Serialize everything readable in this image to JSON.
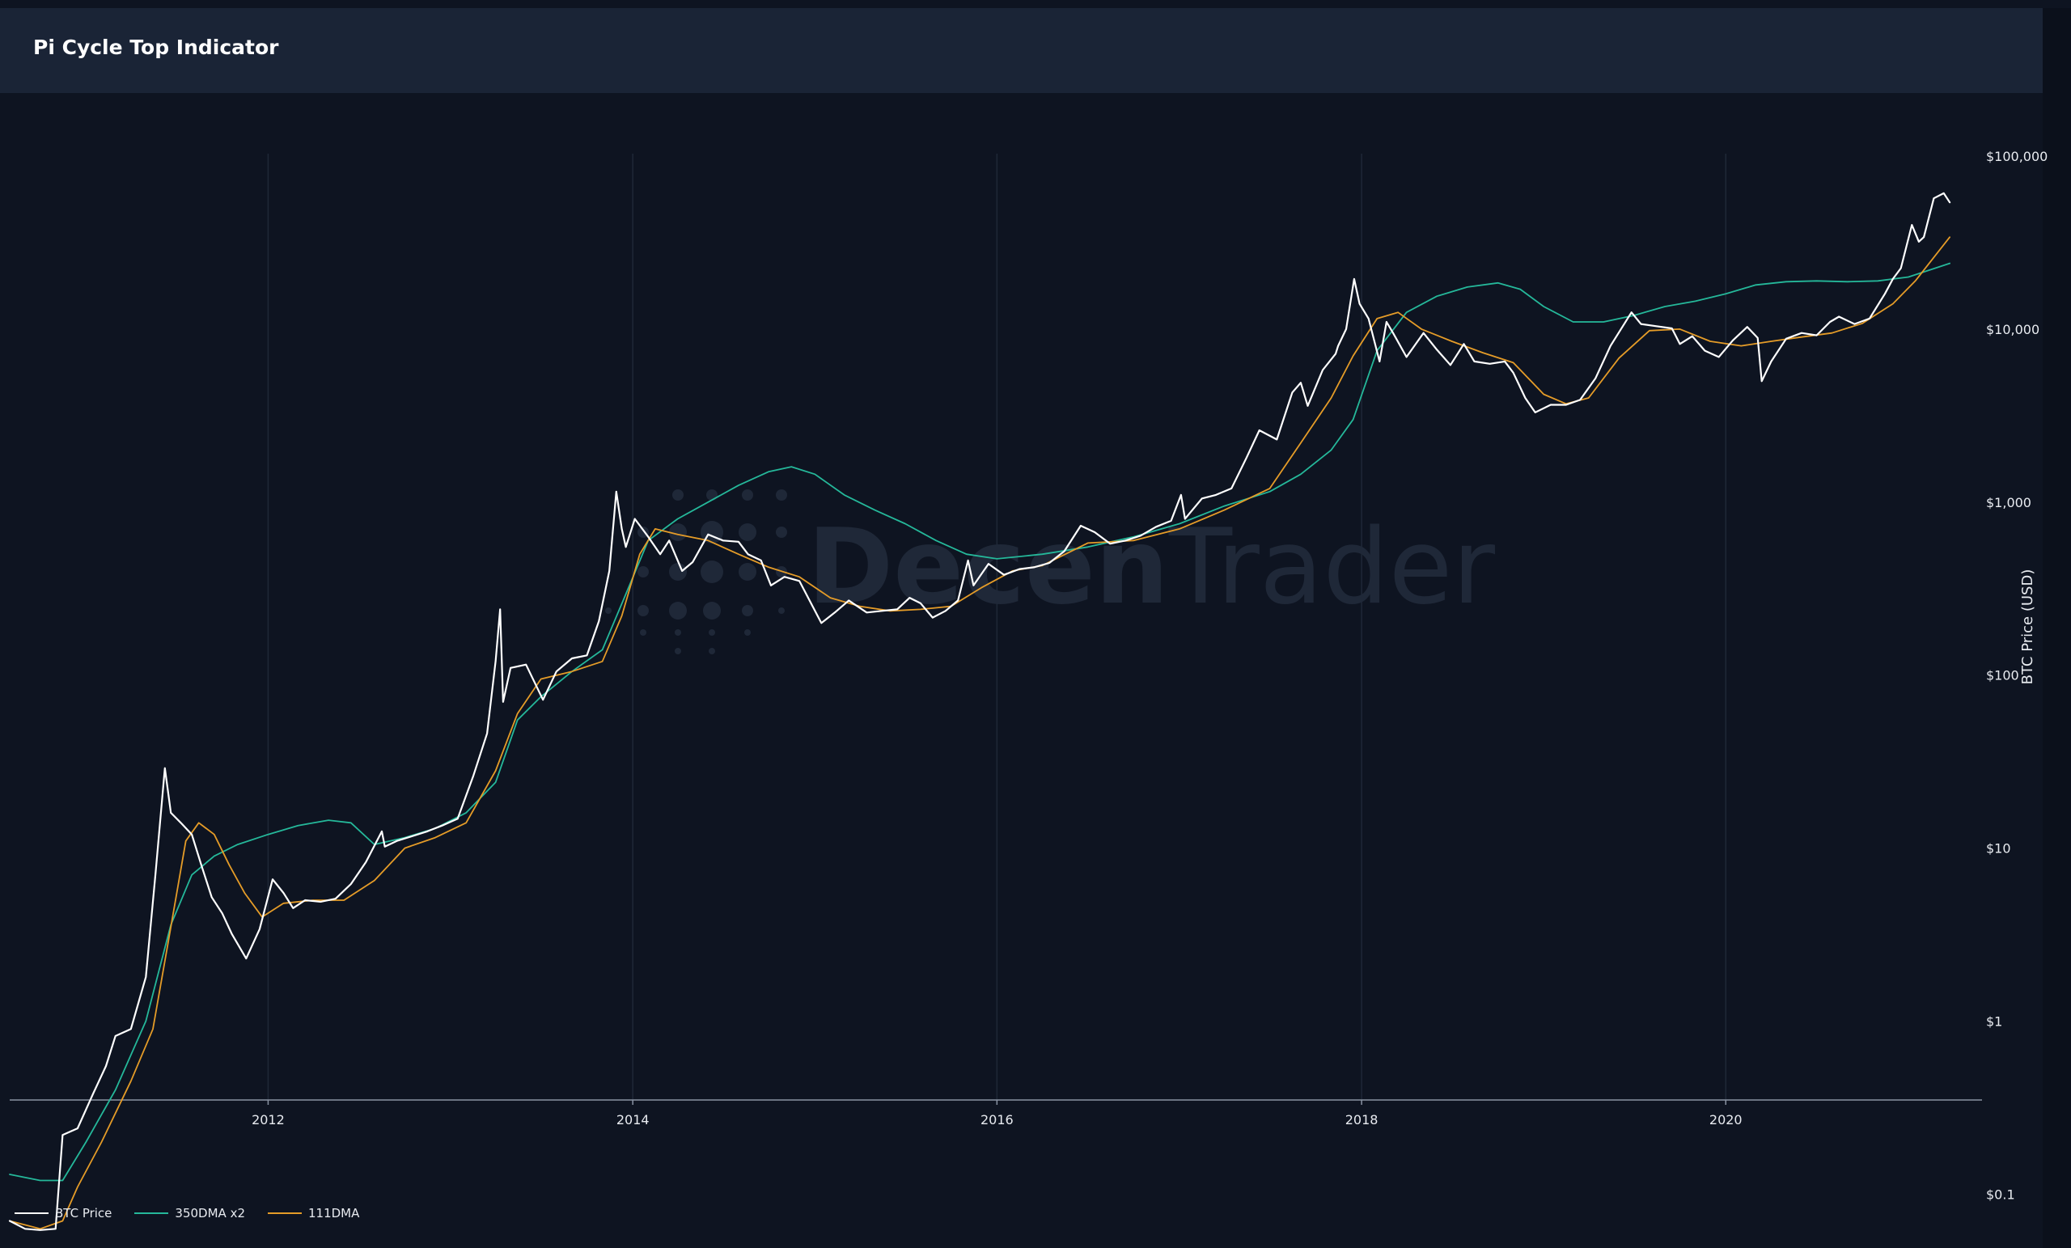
{
  "header": {
    "title": "Pi Cycle Top Indicator"
  },
  "colors": {
    "background": "#0e1421",
    "header_background": "#1a2436",
    "btc_price": "#ffffff",
    "dma350x2": "#25b89a",
    "dma111": "#e59c28",
    "grid": "#1f2837",
    "watermark": "#1f2838",
    "marker": "#cc2255"
  },
  "watermark": {
    "bold_text": "Decen",
    "light_text": "Trader"
  },
  "chart_data": {
    "type": "line",
    "title": "Pi Cycle Top Indicator",
    "xlabel": "",
    "ylabel": "BTC Price (USD)",
    "y_scale": "log",
    "ylim": [
      0.03,
      100000
    ],
    "xlim": [
      "2010-08-01",
      "2021-04-10"
    ],
    "x_ticks": [
      "2012",
      "2014",
      "2016",
      "2018",
      "2020"
    ],
    "x_tick_dates": [
      "2012-01-01",
      "2014-01-01",
      "2016-01-01",
      "2018-01-01",
      "2020-01-01"
    ],
    "y_ticks": [
      0.1,
      1,
      10,
      100,
      1000,
      10000,
      100000
    ],
    "y_tick_labels": [
      "$0.1",
      "$1",
      "$10",
      "$100",
      "$1,000",
      "$10,000",
      "$100,000"
    ],
    "grid": "vertical",
    "legend_position": "bottom-left",
    "series": [
      {
        "name": "BTC Price",
        "color": "#ffffff",
        "x": [
          "2010-08-01",
          "2010-09-01",
          "2010-10-01",
          "2010-11-01",
          "2010-11-15",
          "2010-12-15",
          "2011-01-15",
          "2011-02-10",
          "2011-03-01",
          "2011-04-01",
          "2011-05-01",
          "2011-05-20",
          "2011-06-08",
          "2011-06-20",
          "2011-07-10",
          "2011-08-01",
          "2011-08-20",
          "2011-09-10",
          "2011-10-01",
          "2011-10-20",
          "2011-11-18",
          "2011-12-15",
          "2012-01-10",
          "2012-02-01",
          "2012-02-20",
          "2012-03-15",
          "2012-04-15",
          "2012-05-15",
          "2012-06-15",
          "2012-07-15",
          "2012-08-16",
          "2012-08-22",
          "2012-09-15",
          "2012-10-15",
          "2012-11-15",
          "2012-12-15",
          "2013-01-15",
          "2013-02-15",
          "2013-03-15",
          "2013-04-01",
          "2013-04-10",
          "2013-04-16",
          "2013-05-01",
          "2013-06-01",
          "2013-07-05",
          "2013-08-01",
          "2013-09-01",
          "2013-10-01",
          "2013-10-25",
          "2013-11-15",
          "2013-11-29",
          "2013-12-10",
          "2013-12-18",
          "2014-01-05",
          "2014-02-01",
          "2014-02-25",
          "2014-03-15",
          "2014-04-10",
          "2014-05-01",
          "2014-06-01",
          "2014-07-01",
          "2014-08-01",
          "2014-08-20",
          "2014-09-15",
          "2014-10-05",
          "2014-11-01",
          "2014-12-01",
          "2015-01-14",
          "2015-02-10",
          "2015-03-10",
          "2015-04-15",
          "2015-05-15",
          "2015-06-15",
          "2015-07-10",
          "2015-08-01",
          "2015-08-25",
          "2015-09-20",
          "2015-10-15",
          "2015-11-04",
          "2015-11-15",
          "2015-12-15",
          "2016-01-15",
          "2016-02-15",
          "2016-03-15",
          "2016-04-15",
          "2016-05-15",
          "2016-06-17",
          "2016-07-15",
          "2016-08-15",
          "2016-09-15",
          "2016-10-15",
          "2016-11-15",
          "2016-12-15",
          "2017-01-04",
          "2017-01-12",
          "2017-02-15",
          "2017-03-15",
          "2017-04-15",
          "2017-05-15",
          "2017-06-10",
          "2017-07-15",
          "2017-08-15",
          "2017-09-01",
          "2017-09-15",
          "2017-10-15",
          "2017-11-10",
          "2017-11-15",
          "2017-12-01",
          "2017-12-17",
          "2017-12-28",
          "2018-01-15",
          "2018-02-06",
          "2018-02-20",
          "2018-03-05",
          "2018-04-01",
          "2018-05-05",
          "2018-06-01",
          "2018-06-28",
          "2018-07-25",
          "2018-08-15",
          "2018-09-15",
          "2018-10-15",
          "2018-11-01",
          "2018-11-25",
          "2018-12-15",
          "2019-01-15",
          "2019-02-15",
          "2019-03-15",
          "2019-04-15",
          "2019-05-15",
          "2019-06-26",
          "2019-07-15",
          "2019-08-15",
          "2019-09-15",
          "2019-10-01",
          "2019-10-26",
          "2019-11-20",
          "2019-12-18",
          "2020-01-15",
          "2020-02-13",
          "2020-03-05",
          "2020-03-13",
          "2020-04-01",
          "2020-05-01",
          "2020-06-01",
          "2020-07-01",
          "2020-07-28",
          "2020-08-15",
          "2020-09-15",
          "2020-10-15",
          "2020-11-15",
          "2020-12-01",
          "2020-12-17",
          "2021-01-08",
          "2021-01-22",
          "2021-02-01",
          "2021-02-21",
          "2021-03-13",
          "2021-03-25"
        ],
        "y": [
          0.07,
          0.063,
          0.062,
          0.063,
          0.22,
          0.24,
          0.38,
          0.55,
          0.82,
          0.9,
          1.8,
          7,
          29,
          16,
          14,
          12,
          8,
          5.2,
          4.2,
          3.2,
          2.3,
          3.4,
          6.6,
          5.5,
          4.5,
          5.0,
          4.9,
          5.1,
          6.2,
          8.3,
          12.5,
          10.2,
          11.0,
          11.7,
          12.5,
          13.5,
          14.8,
          26,
          46,
          120,
          240,
          70,
          110,
          115,
          72,
          105,
          125,
          130,
          205,
          400,
          1150,
          700,
          550,
          800,
          630,
          500,
          600,
          400,
          450,
          650,
          600,
          590,
          500,
          460,
          330,
          370,
          350,
          200,
          230,
          270,
          230,
          235,
          240,
          280,
          260,
          215,
          235,
          270,
          460,
          330,
          440,
          380,
          410,
          420,
          445,
          520,
          730,
          670,
          575,
          600,
          640,
          720,
          780,
          1100,
          800,
          1050,
          1100,
          1200,
          1800,
          2600,
          2300,
          4300,
          4900,
          3600,
          5800,
          7200,
          8000,
          10000,
          19500,
          14000,
          11500,
          6500,
          11000,
          9500,
          6900,
          9500,
          7600,
          6200,
          8200,
          6500,
          6300,
          6500,
          5600,
          4000,
          3300,
          3650,
          3650,
          3900,
          5200,
          8000,
          12500,
          10700,
          10400,
          10100,
          8200,
          9100,
          7500,
          6900,
          8600,
          10300,
          8900,
          5000,
          6500,
          8800,
          9500,
          9200,
          11000,
          11800,
          10700,
          11500,
          16000,
          19500,
          22500,
          40000,
          32000,
          34000,
          57000,
          61000,
          54000
        ]
      },
      {
        "name": "350DMA x2",
        "color": "#25b89a",
        "x": [
          "2010-08-01",
          "2010-10-01",
          "2010-11-15",
          "2011-01-01",
          "2011-03-01",
          "2011-05-01",
          "2011-06-20",
          "2011-08-01",
          "2011-09-15",
          "2011-11-01",
          "2012-01-01",
          "2012-03-01",
          "2012-05-01",
          "2012-06-15",
          "2012-08-01",
          "2012-10-01",
          "2012-12-01",
          "2013-02-01",
          "2013-04-01",
          "2013-05-15",
          "2013-07-01",
          "2013-09-01",
          "2013-11-01",
          "2013-12-15",
          "2014-02-01",
          "2014-04-01",
          "2014-06-01",
          "2014-08-01",
          "2014-10-01",
          "2014-11-15",
          "2015-01-01",
          "2015-03-01",
          "2015-05-01",
          "2015-07-01",
          "2015-09-01",
          "2015-11-01",
          "2016-01-01",
          "2016-04-01",
          "2016-07-01",
          "2016-10-01",
          "2017-01-01",
          "2017-04-01",
          "2017-07-01",
          "2017-09-01",
          "2017-11-01",
          "2017-12-15",
          "2018-02-01",
          "2018-04-01",
          "2018-06-01",
          "2018-08-01",
          "2018-10-01",
          "2018-11-15",
          "2019-01-01",
          "2019-03-01",
          "2019-05-01",
          "2019-07-01",
          "2019-09-01",
          "2019-11-01",
          "2020-01-01",
          "2020-03-01",
          "2020-05-01",
          "2020-07-01",
          "2020-09-01",
          "2020-11-01",
          "2021-01-01",
          "2021-03-25"
        ],
        "y": [
          0.13,
          0.12,
          0.12,
          0.2,
          0.4,
          1.0,
          3.6,
          7,
          9,
          10.5,
          12,
          13.5,
          14.5,
          14,
          10.5,
          11.5,
          13,
          16,
          24,
          55,
          75,
          105,
          140,
          280,
          600,
          800,
          1000,
          1250,
          1500,
          1600,
          1450,
          1100,
          900,
          750,
          600,
          500,
          470,
          500,
          550,
          630,
          750,
          950,
          1150,
          1450,
          2000,
          3000,
          7500,
          12500,
          15500,
          17500,
          18500,
          17000,
          13500,
          11000,
          11000,
          12000,
          13500,
          14500,
          16000,
          18000,
          18800,
          19000,
          18800,
          19000,
          20000,
          24000
        ]
      },
      {
        "name": "111DMA",
        "color": "#e59c28",
        "x": [
          "2010-08-01",
          "2010-10-01",
          "2010-11-15",
          "2010-12-15",
          "2011-02-01",
          "2011-04-01",
          "2011-05-15",
          "2011-06-20",
          "2011-07-20",
          "2011-08-15",
          "2011-09-15",
          "2011-10-15",
          "2011-11-15",
          "2011-12-20",
          "2012-02-01",
          "2012-04-01",
          "2012-06-01",
          "2012-08-01",
          "2012-10-01",
          "2012-12-01",
          "2013-02-01",
          "2013-04-01",
          "2013-05-15",
          "2013-07-01",
          "2013-09-01",
          "2013-11-01",
          "2013-12-10",
          "2014-01-15",
          "2014-02-15",
          "2014-04-01",
          "2014-06-01",
          "2014-08-01",
          "2014-10-01",
          "2014-12-01",
          "2015-02-01",
          "2015-04-01",
          "2015-06-01",
          "2015-08-01",
          "2015-10-01",
          "2015-12-01",
          "2016-02-01",
          "2016-04-01",
          "2016-07-01",
          "2016-10-01",
          "2017-01-01",
          "2017-04-01",
          "2017-07-01",
          "2017-09-01",
          "2017-11-01",
          "2017-12-15",
          "2018-02-01",
          "2018-03-15",
          "2018-05-01",
          "2018-07-01",
          "2018-09-01",
          "2018-11-01",
          "2019-01-01",
          "2019-02-15",
          "2019-04-01",
          "2019-06-01",
          "2019-08-01",
          "2019-10-01",
          "2019-12-01",
          "2020-02-01",
          "2020-04-01",
          "2020-06-01",
          "2020-08-01",
          "2020-10-01",
          "2020-12-01",
          "2021-01-15",
          "2021-03-25"
        ],
        "y": [
          0.07,
          0.063,
          0.07,
          0.11,
          0.2,
          0.45,
          0.9,
          3.5,
          11,
          14,
          12,
          8,
          5.5,
          4.0,
          4.8,
          5.0,
          5.0,
          6.5,
          10,
          11.5,
          14,
          28,
          60,
          95,
          105,
          120,
          220,
          500,
          700,
          650,
          600,
          500,
          420,
          370,
          280,
          250,
          235,
          240,
          250,
          320,
          400,
          430,
          580,
          600,
          700,
          900,
          1200,
          2200,
          4000,
          7000,
          11500,
          12500,
          10000,
          8500,
          7300,
          6400,
          4200,
          3700,
          4000,
          6800,
          9800,
          10000,
          8500,
          8000,
          8500,
          9000,
          9500,
          10800,
          14000,
          19000,
          34000
        ]
      }
    ]
  }
}
